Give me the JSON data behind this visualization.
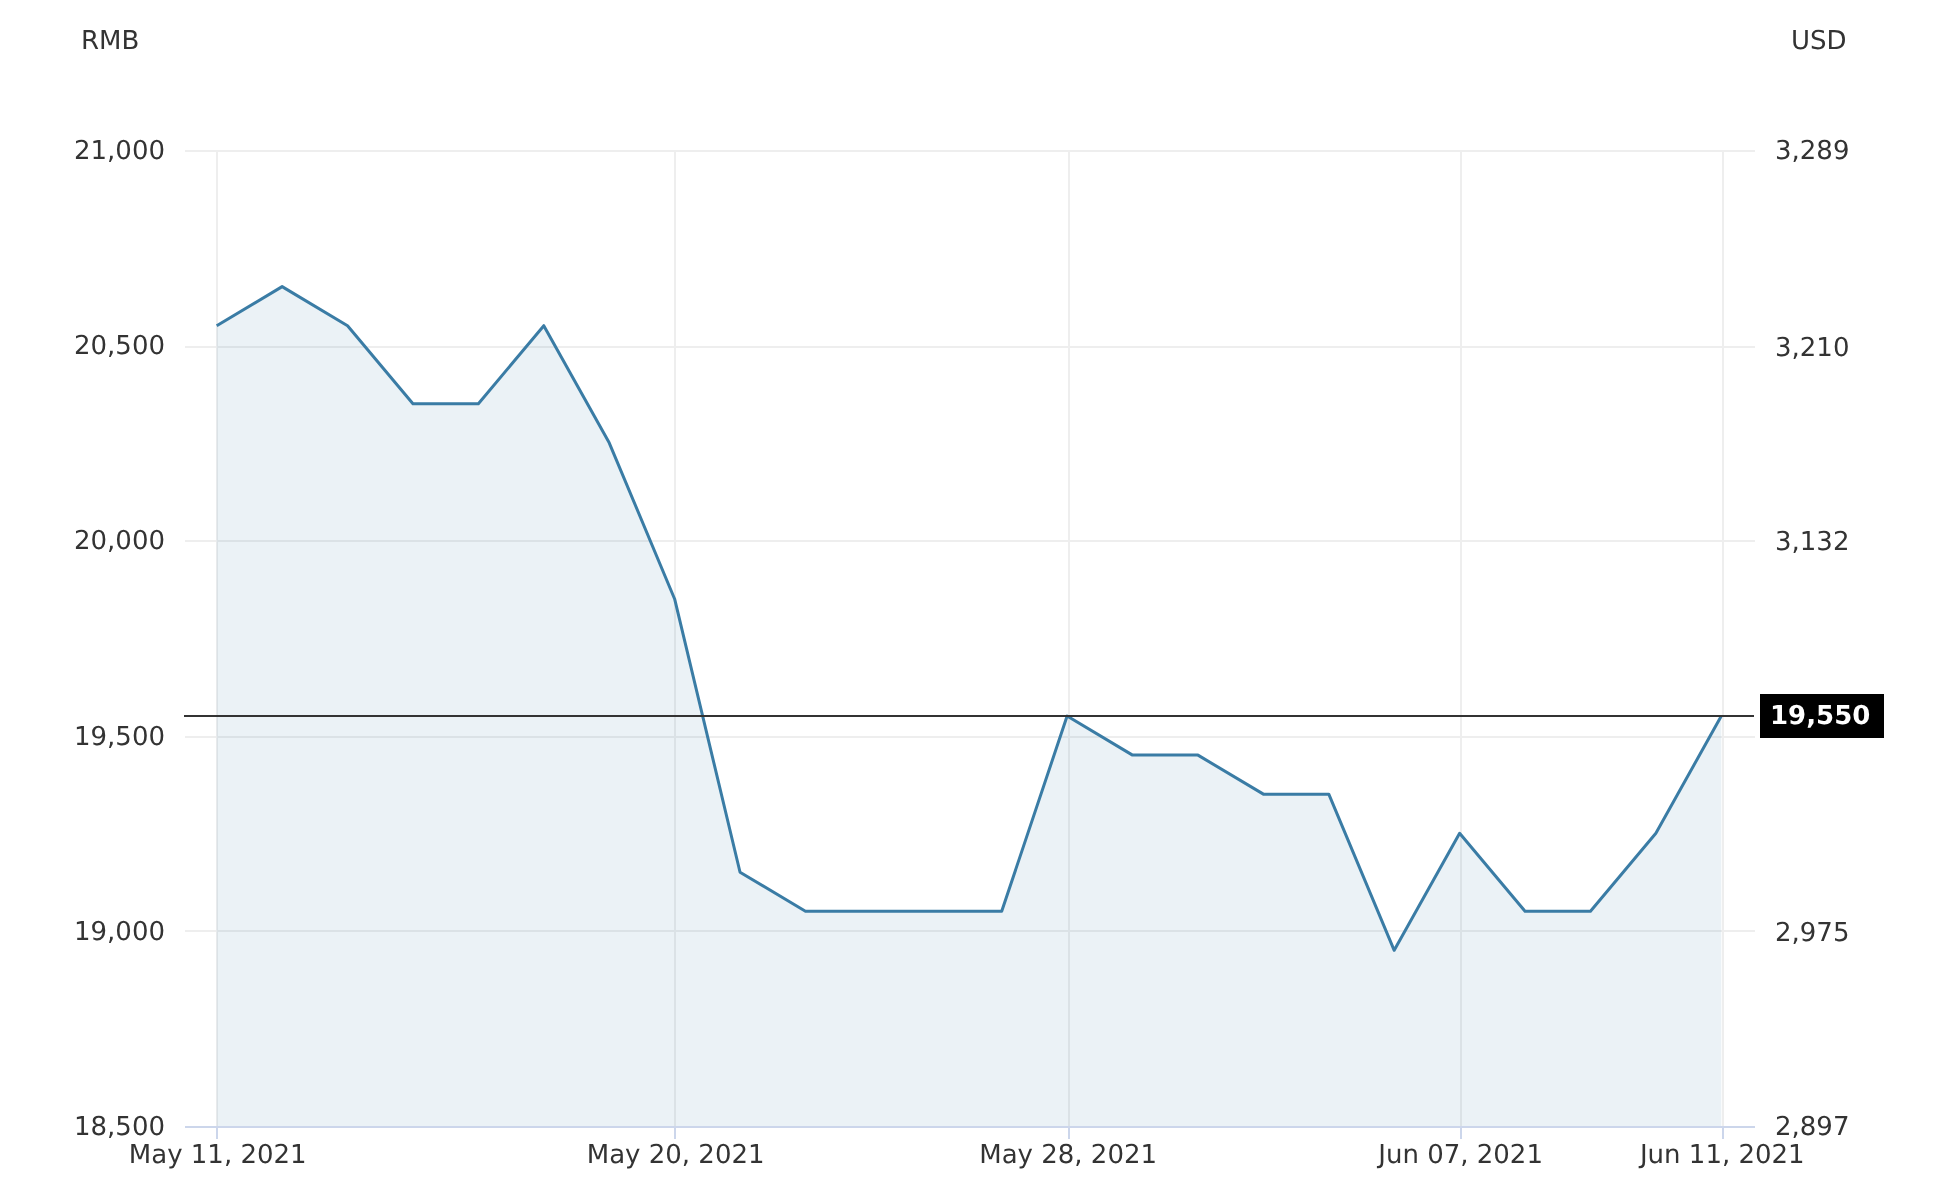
{
  "chart_data": {
    "type": "area",
    "ylabel": "RMB",
    "y2label": "USD",
    "categories": [
      "May 11, 2021",
      null,
      null,
      null,
      null,
      null,
      null,
      "May 20, 2021",
      null,
      null,
      null,
      null,
      null,
      "May 28, 2021",
      null,
      null,
      null,
      null,
      null,
      "Jun 07, 2021",
      null,
      null,
      null,
      "Jun 11, 2021"
    ],
    "series": [
      {
        "color": "#3a7ca5",
        "values": [
          20550,
          20650,
          20550,
          20350,
          20350,
          20550,
          20250,
          19850,
          19150,
          19050,
          19050,
          19050,
          19050,
          19550,
          19450,
          19450,
          19350,
          19350,
          18950,
          19250,
          19050,
          19050,
          19250,
          19550
        ]
      }
    ],
    "ylim": [
      18500,
      21000
    ],
    "yticks": [
      {
        "value": 18500,
        "label": "18,500"
      },
      {
        "value": 19000,
        "label": "19,000"
      },
      {
        "value": 19500,
        "label": "19,500"
      },
      {
        "value": 20000,
        "label": "20,000"
      },
      {
        "value": 20500,
        "label": "20,500"
      },
      {
        "value": 21000,
        "label": "21,000"
      }
    ],
    "y2lim": [
      2897,
      3289
    ],
    "y2ticks": [
      {
        "value": 2897,
        "label": "2,897"
      },
      {
        "value": 2975,
        "label": "2,975"
      },
      {
        "value": 3054,
        "label": null
      },
      {
        "value": 3132,
        "label": "3,132"
      },
      {
        "value": 3210,
        "label": "3,210"
      },
      {
        "value": 3289,
        "label": "3,289"
      }
    ],
    "ref_lines": [
      {
        "axis": "y",
        "value": 19550,
        "label": "19,550",
        "color": "#333333"
      }
    ],
    "grid": true,
    "marker": "none",
    "line_style": "solid"
  }
}
